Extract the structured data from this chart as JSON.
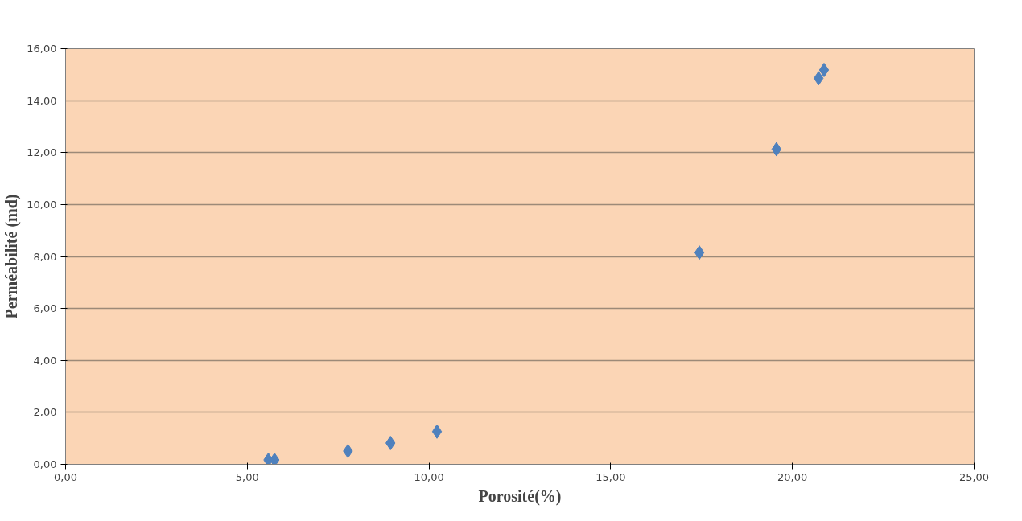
{
  "chart_data": {
    "type": "scatter",
    "xlabel": "Porosité(%)",
    "ylabel": "Perméabilité (md)",
    "x": [
      5.58,
      5.75,
      7.77,
      8.94,
      10.22,
      17.44,
      19.56,
      20.72,
      20.87
    ],
    "series": [
      {
        "color": "#4f81bd",
        "values": [
          0.17,
          0.17,
          0.51,
          0.82,
          1.26,
          8.15,
          12.13,
          14.86,
          15.18
        ]
      }
    ],
    "xlim": [
      0,
      25
    ],
    "xticks": [
      {
        "value": 0,
        "label": "0,00"
      },
      {
        "value": 5,
        "label": "5,00"
      },
      {
        "value": 10,
        "label": "10,00"
      },
      {
        "value": 15,
        "label": "15,00"
      },
      {
        "value": 20,
        "label": "20,00"
      },
      {
        "value": 25,
        "label": "25,00"
      }
    ],
    "ylim": [
      0,
      16
    ],
    "yticks": [
      {
        "value": 0,
        "label": "0,00"
      },
      {
        "value": 2,
        "label": "2,00"
      },
      {
        "value": 4,
        "label": "4,00"
      },
      {
        "value": 6,
        "label": "6,00"
      },
      {
        "value": 8,
        "label": "8,00"
      },
      {
        "value": 10,
        "label": "10,00"
      },
      {
        "value": 12,
        "label": "12,00"
      },
      {
        "value": 14,
        "label": "14,00"
      },
      {
        "value": 16,
        "label": "16,00"
      }
    ],
    "grid": "y",
    "marker": "diamond"
  }
}
